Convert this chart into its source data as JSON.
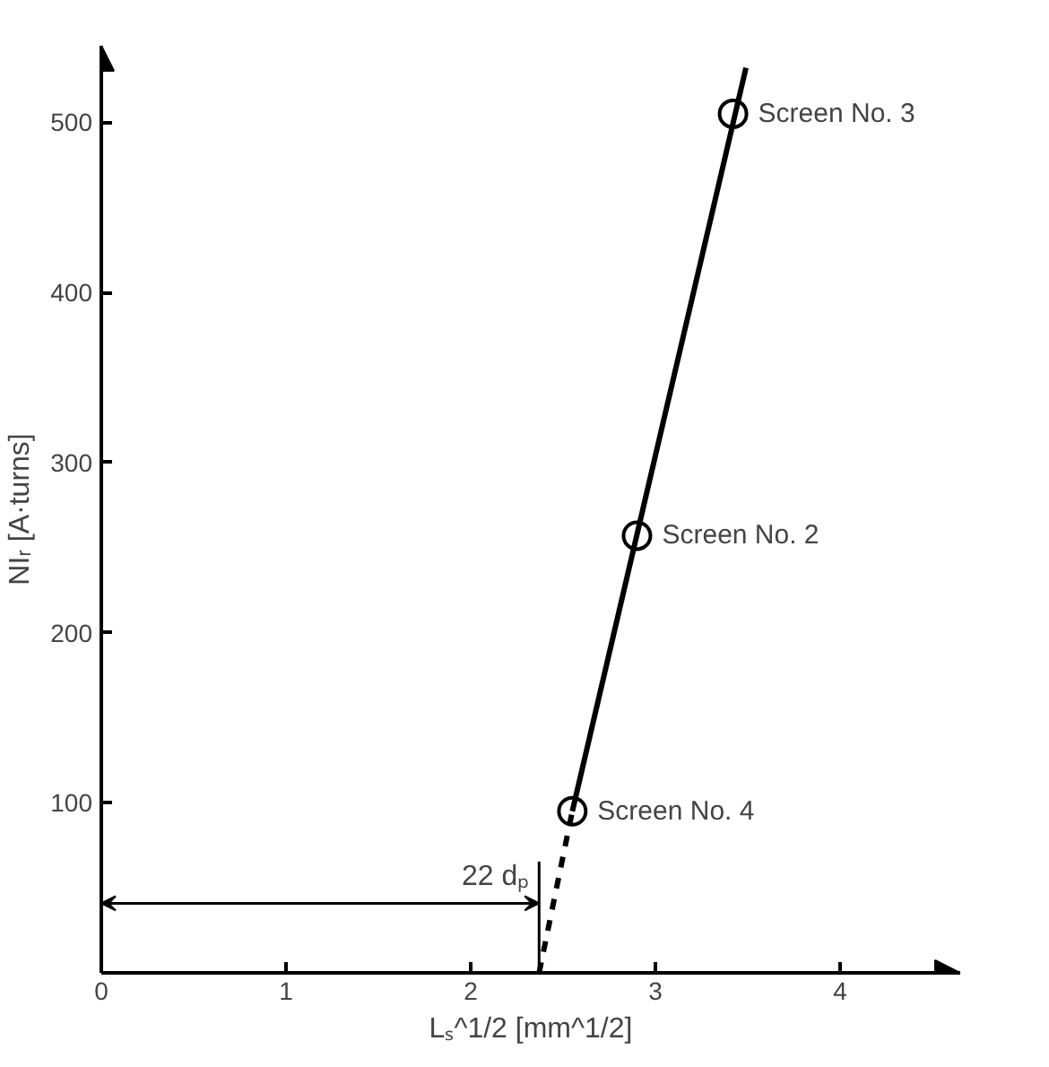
{
  "chart_data": {
    "type": "line",
    "xlabel": "Lₛ^1/2 [mm^1/2]",
    "ylabel": "NIᵣ [A·turns]",
    "xlim": [
      0,
      4.65
    ],
    "ylim": [
      0,
      545
    ],
    "xticks": [
      0,
      1,
      2,
      3,
      4
    ],
    "yticks": [
      100,
      200,
      300,
      400,
      500
    ],
    "grid": false,
    "series": [
      {
        "type": "scatter",
        "color": "#000000",
        "marker": "circle",
        "x": [
          2.55,
          2.9,
          3.42
        ],
        "values": [
          95,
          257,
          505
        ]
      },
      {
        "color": "#000000",
        "line_style": "solid",
        "x": [
          2.55,
          3.49
        ],
        "values": [
          95,
          532
        ]
      },
      {
        "color": "#000000",
        "line_style": "dashed",
        "x": [
          2.37,
          2.55
        ],
        "values": [
          0,
          95
        ]
      }
    ],
    "ref_lines": [
      {
        "axis": "x",
        "value": 2.37,
        "label": "22 dₚ"
      }
    ],
    "annotations": [
      {
        "text": "Screen No. 3",
        "x": 3.42,
        "y": 505
      },
      {
        "text": "Screen No. 2",
        "x": 2.9,
        "y": 257
      },
      {
        "text": "Screen No. 4",
        "x": 2.55,
        "y": 95
      }
    ]
  }
}
